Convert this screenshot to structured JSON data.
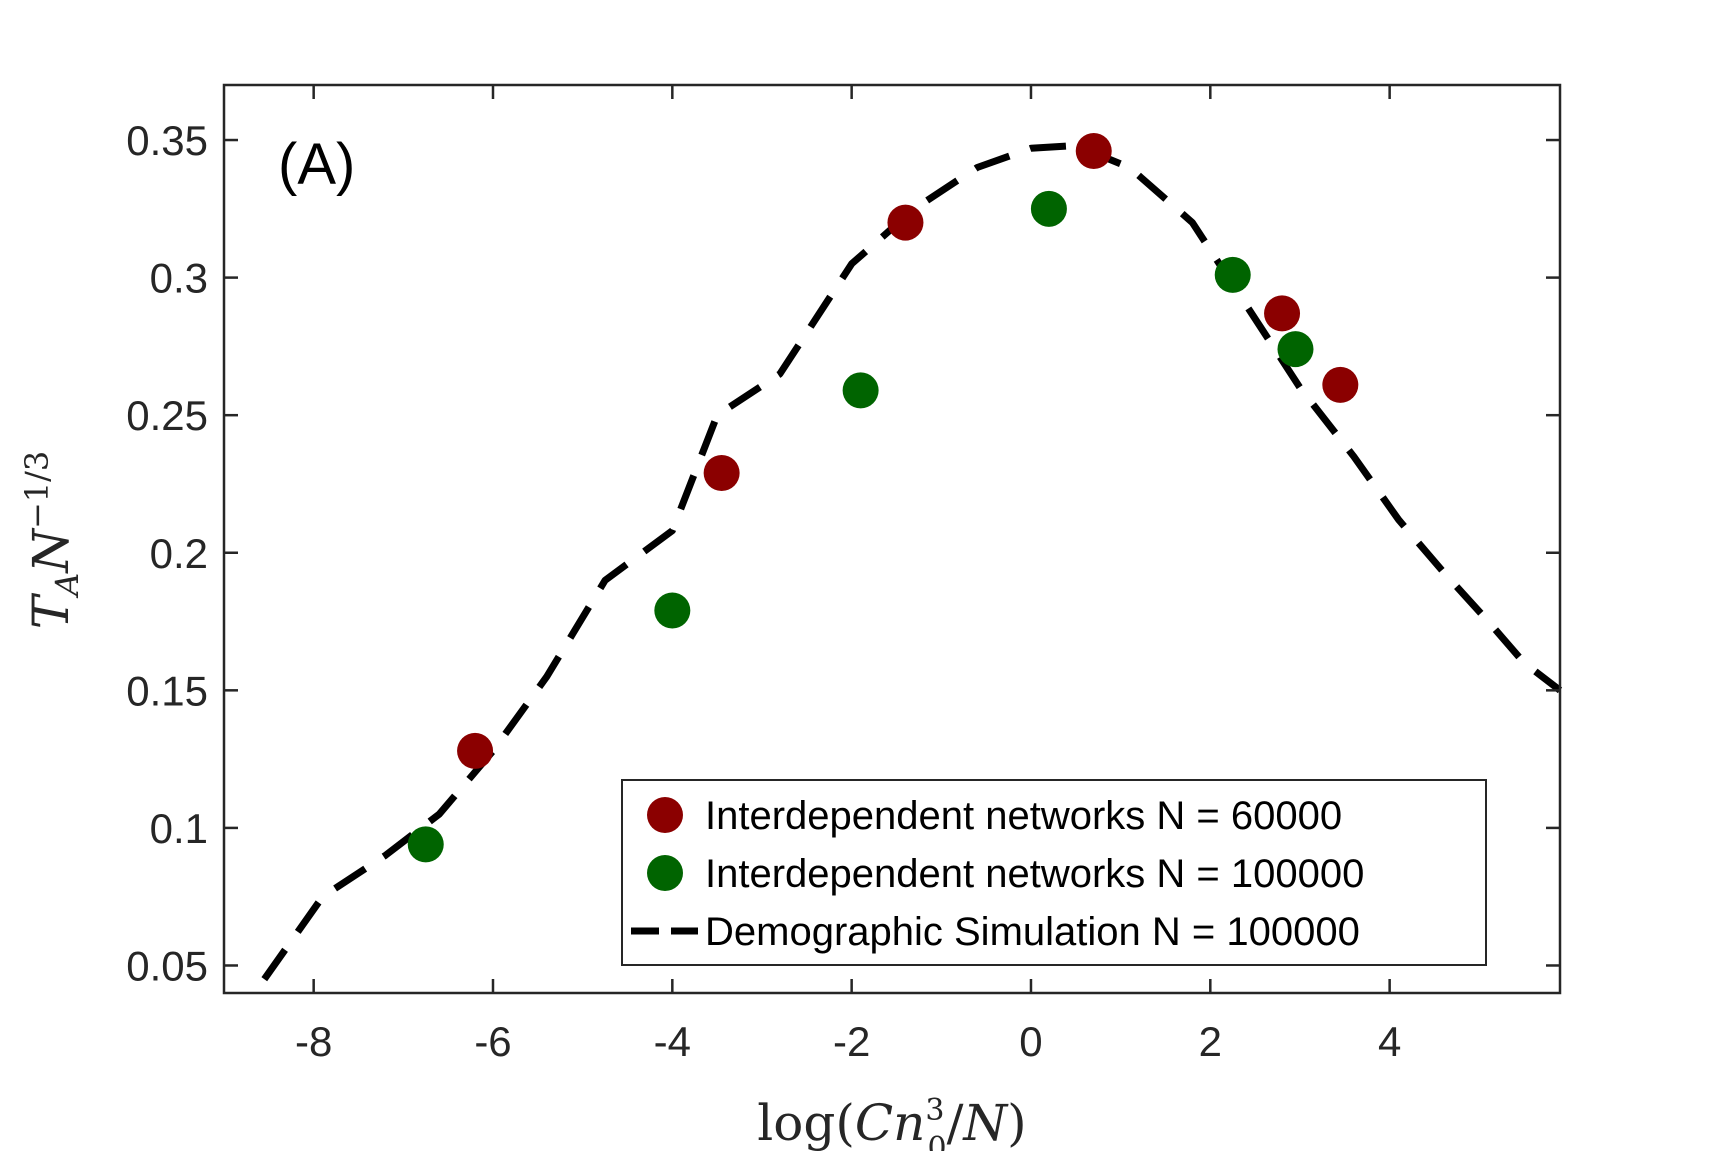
{
  "chart_data": {
    "type": "scatter",
    "panel_label": "(A)",
    "xlabel": {
      "prefix": "log(",
      "var1": "Cn",
      "sup": "3",
      "sub": "0",
      "rest": "/",
      "var2": "N",
      "suffix": ")"
    },
    "ylabel": {
      "var": "T",
      "sub": "A",
      "var2": "N",
      "sup": "−1/3"
    },
    "xlim": [
      -9,
      5.9
    ],
    "ylim": [
      0.04,
      0.37
    ],
    "xticks": [
      -8,
      -6,
      -4,
      -2,
      0,
      2,
      4
    ],
    "xtick_labels": [
      "-8",
      "-6",
      "-4",
      "-2",
      "0",
      "2",
      "4"
    ],
    "yticks": [
      0.05,
      0.1,
      0.15,
      0.2,
      0.25,
      0.3,
      0.35
    ],
    "ytick_labels": [
      "0.05",
      "0.1",
      "0.15",
      "0.2",
      "0.25",
      "0.3",
      "0.35"
    ],
    "grid": false,
    "legend_position": "bottom-right",
    "series": [
      {
        "name": "Interdependent networks N = 60000",
        "style": "marker",
        "color": "#8b0000",
        "x": [
          -6.2,
          -3.45,
          -1.4,
          0.7,
          2.8,
          3.45
        ],
        "y": [
          0.128,
          0.229,
          0.32,
          0.346,
          0.287,
          0.261
        ]
      },
      {
        "name": "Interdependent networks N = 100000",
        "style": "marker",
        "color": "#006400",
        "x": [
          -6.75,
          -4.0,
          -1.9,
          0.2,
          2.25,
          2.95
        ],
        "y": [
          0.094,
          0.179,
          0.259,
          0.325,
          0.301,
          0.274
        ]
      },
      {
        "name": "Demographic Simulation N = 100000",
        "style": "dashed-line",
        "color": "#000000",
        "x": [
          -8.55,
          -7.9,
          -7.2,
          -6.6,
          -6.0,
          -5.4,
          -4.75,
          -4.0,
          -3.5,
          -2.8,
          -2.0,
          -1.3,
          -0.6,
          0.0,
          0.5,
          1.1,
          1.8,
          2.4,
          3.0,
          3.6,
          4.1,
          4.6,
          5.1,
          5.5,
          5.9
        ],
        "y": [
          0.045,
          0.075,
          0.09,
          0.105,
          0.128,
          0.155,
          0.19,
          0.208,
          0.25,
          0.265,
          0.305,
          0.325,
          0.34,
          0.347,
          0.348,
          0.34,
          0.32,
          0.29,
          0.26,
          0.235,
          0.212,
          0.193,
          0.175,
          0.16,
          0.15
        ]
      }
    ]
  }
}
